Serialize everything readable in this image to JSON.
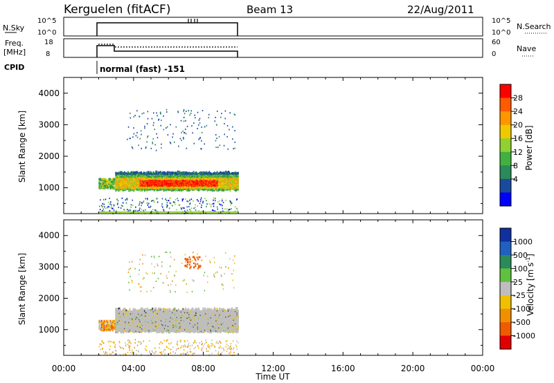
{
  "header": {
    "station": "Kerguelen (fitACF)",
    "beam": "Beam 13",
    "date": "22/Aug/2011"
  },
  "top_panels": {
    "nsky": {
      "label": "N.Sky",
      "ticks": [
        "10^5",
        "10^0"
      ],
      "right_ticks": [
        "10^5",
        "10^0"
      ],
      "right_label": "N.Search"
    },
    "freq": {
      "label_line1": "Freq.",
      "label_line2": "[MHz]",
      "ticks": [
        "18",
        "8"
      ],
      "right_ticks": [
        "60",
        "0"
      ],
      "right_label": "Nave"
    },
    "cpid": {
      "label": "CPID",
      "mode": "normal (fast) -151"
    }
  },
  "x_axis": {
    "label": "Time UT",
    "ticks": [
      "00:00",
      "04:00",
      "08:00",
      "12:00",
      "16:00",
      "20:00",
      "00:00"
    ]
  },
  "power_colorbar": {
    "title": "Power [dB]",
    "ticks": [
      "28",
      "24",
      "20",
      "16",
      "12",
      "8",
      "4"
    ],
    "colors": [
      "#ff0000",
      "#ff5a00",
      "#ff9600",
      "#f0c800",
      "#90d030",
      "#40b040",
      "#2a8a5a",
      "#1a4a9e",
      "#0000ff"
    ]
  },
  "velocity_colorbar": {
    "title": "Velocity [m s",
    "title_sup": "-1",
    "title_end": "]",
    "ticks": [
      "1000",
      "500",
      "100",
      "25",
      "-25",
      "-100",
      "-500",
      "-1000"
    ],
    "colors": [
      "#1030a0",
      "#2060c0",
      "#2a8a5a",
      "#60c040",
      "#bebebe",
      "#f0c000",
      "#f09000",
      "#f05a00",
      "#e00000"
    ]
  },
  "chart_data": [
    {
      "type": "heatmap",
      "name": "power",
      "ylabel": "Slant Range [km]",
      "xlabel": "Time UT",
      "x_unit": "hours UT",
      "xlim": [
        0,
        24
      ],
      "ylim": [
        180,
        4500
      ],
      "y_ticks": [
        1000,
        2000,
        3000,
        4000
      ],
      "data_window_hours": [
        2.0,
        10.0
      ],
      "regions": [
        {
          "t0": 2.0,
          "t1": 2.95,
          "r0": 980,
          "r1": 1300,
          "level": "mixed-green-yellow"
        },
        {
          "t0": 2.95,
          "t1": 10.0,
          "r0": 900,
          "r1": 1520,
          "level": "green-orange-red"
        },
        {
          "t0": 4.5,
          "t1": 8.5,
          "r0": 1050,
          "r1": 1350,
          "level": "red-peak"
        },
        {
          "t0": 3.5,
          "t1": 9.8,
          "r0": 2300,
          "r1": 3400,
          "level": "sparse-blue"
        },
        {
          "t0": 2.0,
          "t1": 10.0,
          "r0": 180,
          "r1": 700,
          "level": "sparse-blue-near-range"
        }
      ]
    },
    {
      "type": "heatmap",
      "name": "velocity",
      "ylabel": "Slant Range [km]",
      "xlabel": "Time UT",
      "x_unit": "hours UT",
      "xlim": [
        0,
        24
      ],
      "ylim": [
        180,
        4500
      ],
      "y_ticks": [
        1000,
        2000,
        3000,
        4000
      ],
      "data_window_hours": [
        2.0,
        10.0
      ],
      "regions": [
        {
          "t0": 2.0,
          "t1": 2.95,
          "r0": 980,
          "r1": 1300,
          "level": "mixed-orange"
        },
        {
          "t0": 2.95,
          "t1": 10.0,
          "r0": 900,
          "r1": 1700,
          "level": "grey-near-zero"
        },
        {
          "t0": 6.8,
          "t1": 7.8,
          "r0": 2900,
          "r1": 3400,
          "level": "orange"
        },
        {
          "t0": 2.0,
          "t1": 10.0,
          "r0": 180,
          "r1": 700,
          "level": "sparse-yellow"
        }
      ]
    }
  ]
}
